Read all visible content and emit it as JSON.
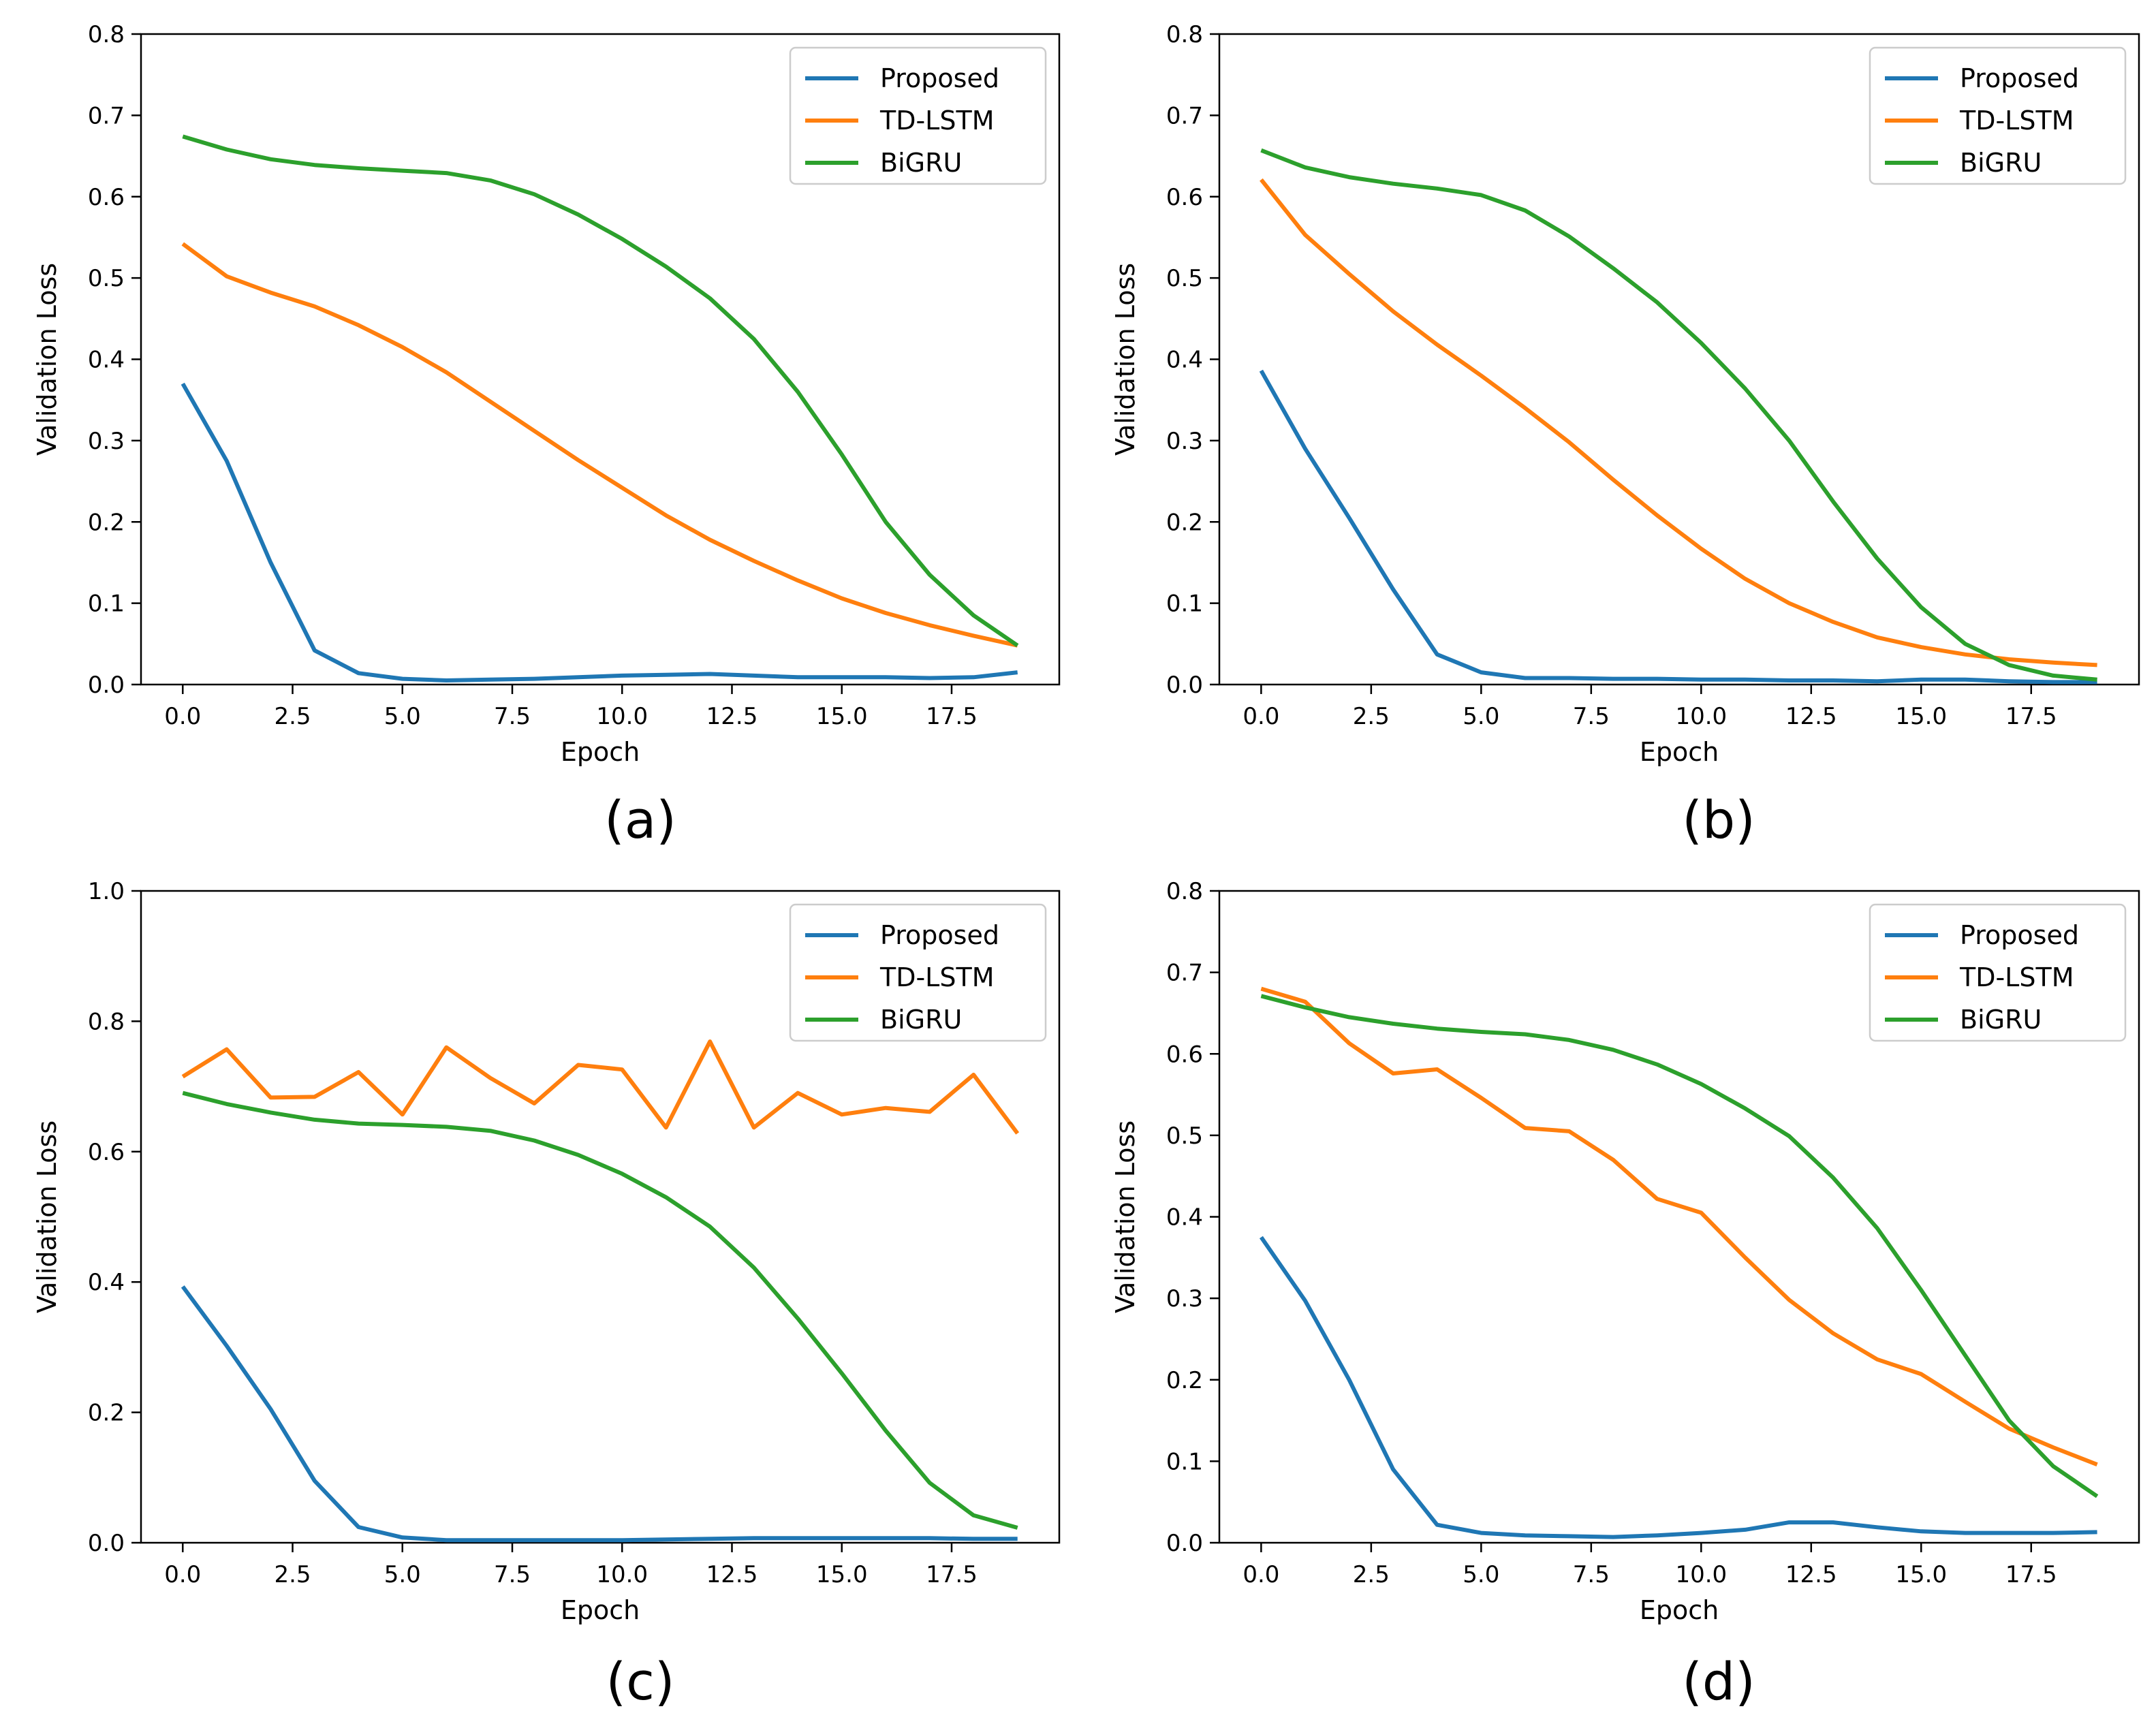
{
  "colors": {
    "Proposed": "#1f77b4",
    "TD-LSTM": "#ff7f0e",
    "BiGRU": "#2ca02c"
  },
  "chart_data": [
    {
      "type": "line",
      "caption": "(a)",
      "xlabel": "Epoch",
      "ylabel": "Validation Loss",
      "xlim": [
        -0.95,
        19.95
      ],
      "ylim": [
        0,
        0.8
      ],
      "xticks": [
        "0.0",
        "2.5",
        "5.0",
        "7.5",
        "10.0",
        "12.5",
        "15.0",
        "17.5"
      ],
      "yticks": [
        "0.0",
        "0.1",
        "0.2",
        "0.3",
        "0.4",
        "0.5",
        "0.6",
        "0.7",
        "0.8"
      ],
      "legend_position": "upper right",
      "x": [
        0,
        1,
        2,
        3,
        4,
        5,
        6,
        7,
        8,
        9,
        10,
        11,
        12,
        13,
        14,
        15,
        16,
        17,
        18,
        19
      ],
      "series": [
        {
          "name": "Proposed",
          "values": [
            0.37,
            0.275,
            0.15,
            0.042,
            0.014,
            0.007,
            0.005,
            0.006,
            0.007,
            0.009,
            0.011,
            0.012,
            0.013,
            0.011,
            0.009,
            0.009,
            0.009,
            0.008,
            0.009,
            0.015
          ]
        },
        {
          "name": "TD-LSTM",
          "values": [
            0.542,
            0.502,
            0.482,
            0.465,
            0.442,
            0.415,
            0.384,
            0.348,
            0.312,
            0.276,
            0.242,
            0.208,
            0.178,
            0.152,
            0.128,
            0.106,
            0.088,
            0.073,
            0.06,
            0.048
          ]
        },
        {
          "name": "BiGRU",
          "values": [
            0.674,
            0.658,
            0.646,
            0.639,
            0.635,
            0.632,
            0.629,
            0.62,
            0.603,
            0.578,
            0.548,
            0.514,
            0.475,
            0.425,
            0.36,
            0.283,
            0.2,
            0.135,
            0.085,
            0.048
          ]
        }
      ]
    },
    {
      "type": "line",
      "caption": "(b)",
      "xlabel": "Epoch",
      "ylabel": "Validation Loss",
      "xlim": [
        -0.95,
        19.95
      ],
      "ylim": [
        0,
        0.8
      ],
      "xticks": [
        "0.0",
        "2.5",
        "5.0",
        "7.5",
        "10.0",
        "12.5",
        "15.0",
        "17.5"
      ],
      "yticks": [
        "0.0",
        "0.1",
        "0.2",
        "0.3",
        "0.4",
        "0.5",
        "0.6",
        "0.7",
        "0.8"
      ],
      "legend_position": "upper right",
      "x": [
        0,
        1,
        2,
        3,
        4,
        5,
        6,
        7,
        8,
        9,
        10,
        11,
        12,
        13,
        14,
        15,
        16,
        17,
        18,
        19
      ],
      "series": [
        {
          "name": "Proposed",
          "values": [
            0.386,
            0.29,
            0.205,
            0.117,
            0.037,
            0.015,
            0.008,
            0.008,
            0.007,
            0.007,
            0.006,
            0.006,
            0.005,
            0.005,
            0.004,
            0.006,
            0.006,
            0.004,
            0.003,
            0.003
          ]
        },
        {
          "name": "TD-LSTM",
          "values": [
            0.621,
            0.553,
            0.505,
            0.459,
            0.418,
            0.38,
            0.34,
            0.298,
            0.252,
            0.208,
            0.167,
            0.13,
            0.1,
            0.077,
            0.058,
            0.046,
            0.037,
            0.031,
            0.027,
            0.024
          ]
        },
        {
          "name": "BiGRU",
          "values": [
            0.657,
            0.636,
            0.624,
            0.616,
            0.61,
            0.602,
            0.583,
            0.551,
            0.512,
            0.47,
            0.42,
            0.364,
            0.3,
            0.225,
            0.155,
            0.095,
            0.05,
            0.024,
            0.011,
            0.006
          ]
        }
      ]
    },
    {
      "type": "line",
      "caption": "(c)",
      "xlabel": "Epoch",
      "ylabel": "Validation Loss",
      "xlim": [
        -0.95,
        19.95
      ],
      "ylim": [
        0,
        1.0
      ],
      "xticks": [
        "0.0",
        "2.5",
        "5.0",
        "7.5",
        "10.0",
        "12.5",
        "15.0",
        "17.5"
      ],
      "yticks": [
        "0.0",
        "0.2",
        "0.4",
        "0.6",
        "0.8",
        "1.0"
      ],
      "legend_position": "upper right",
      "x": [
        0,
        1,
        2,
        3,
        4,
        5,
        6,
        7,
        8,
        9,
        10,
        11,
        12,
        13,
        14,
        15,
        16,
        17,
        18,
        19
      ],
      "series": [
        {
          "name": "Proposed",
          "values": [
            0.393,
            0.302,
            0.205,
            0.095,
            0.024,
            0.008,
            0.004,
            0.004,
            0.004,
            0.004,
            0.004,
            0.005,
            0.006,
            0.007,
            0.007,
            0.007,
            0.007,
            0.007,
            0.006,
            0.006
          ]
        },
        {
          "name": "TD-LSTM",
          "values": [
            0.715,
            0.757,
            0.683,
            0.684,
            0.722,
            0.657,
            0.76,
            0.713,
            0.674,
            0.733,
            0.726,
            0.637,
            0.769,
            0.637,
            0.69,
            0.657,
            0.667,
            0.661,
            0.718,
            0.628
          ]
        },
        {
          "name": "BiGRU",
          "values": [
            0.69,
            0.673,
            0.66,
            0.649,
            0.643,
            0.641,
            0.638,
            0.632,
            0.617,
            0.595,
            0.566,
            0.53,
            0.485,
            0.422,
            0.344,
            0.26,
            0.172,
            0.092,
            0.042,
            0.023
          ]
        }
      ]
    },
    {
      "type": "line",
      "caption": "(d)",
      "xlabel": "Epoch",
      "ylabel": "Validation Loss",
      "xlim": [
        -0.95,
        19.95
      ],
      "ylim": [
        0,
        0.8
      ],
      "xticks": [
        "0.0",
        "2.5",
        "5.0",
        "7.5",
        "10.0",
        "12.5",
        "15.0",
        "17.5"
      ],
      "yticks": [
        "0.0",
        "0.1",
        "0.2",
        "0.3",
        "0.4",
        "0.5",
        "0.6",
        "0.7",
        "0.8"
      ],
      "legend_position": "upper right",
      "x": [
        0,
        1,
        2,
        3,
        4,
        5,
        6,
        7,
        8,
        9,
        10,
        11,
        12,
        13,
        14,
        15,
        16,
        17,
        18,
        19
      ],
      "series": [
        {
          "name": "Proposed",
          "values": [
            0.375,
            0.297,
            0.2,
            0.09,
            0.022,
            0.012,
            0.009,
            0.008,
            0.007,
            0.009,
            0.012,
            0.016,
            0.025,
            0.025,
            0.019,
            0.014,
            0.012,
            0.012,
            0.012,
            0.013
          ]
        },
        {
          "name": "TD-LSTM",
          "values": [
            0.68,
            0.664,
            0.613,
            0.576,
            0.581,
            0.546,
            0.509,
            0.505,
            0.47,
            0.422,
            0.405,
            0.35,
            0.298,
            0.257,
            0.225,
            0.207,
            0.173,
            0.14,
            0.117,
            0.096
          ]
        },
        {
          "name": "BiGRU",
          "values": [
            0.671,
            0.657,
            0.645,
            0.637,
            0.631,
            0.627,
            0.624,
            0.617,
            0.605,
            0.587,
            0.563,
            0.533,
            0.499,
            0.448,
            0.386,
            0.31,
            0.23,
            0.15,
            0.094,
            0.057
          ]
        }
      ]
    }
  ]
}
